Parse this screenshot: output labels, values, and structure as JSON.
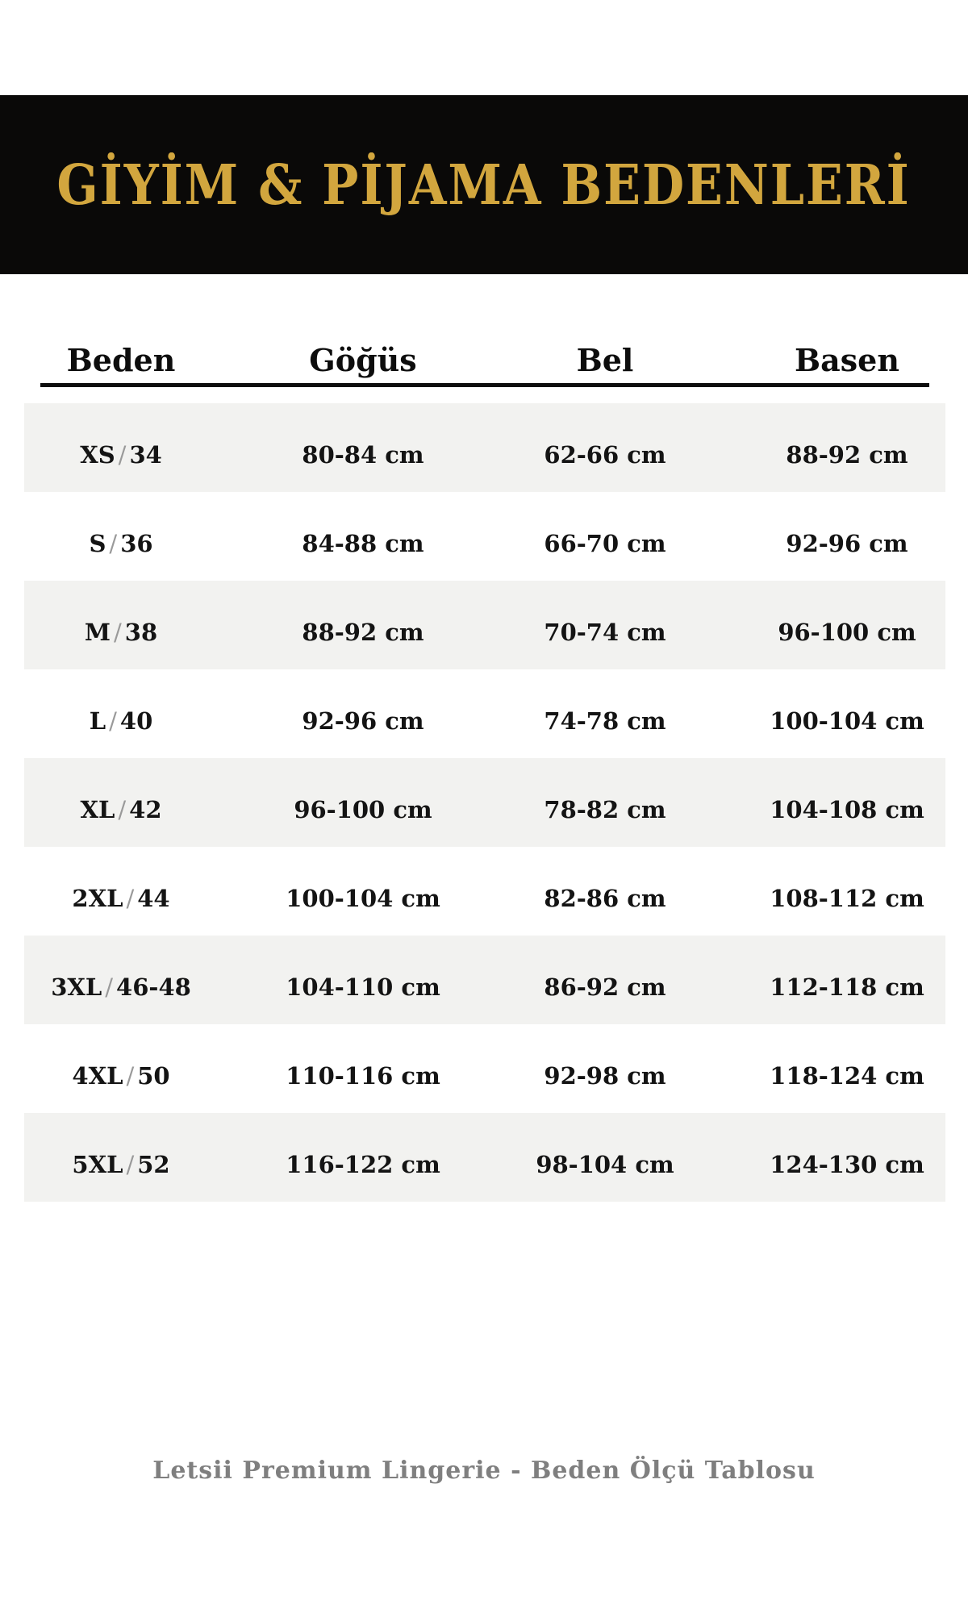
{
  "banner": {
    "title": "GİYİM & PİJAMA BEDENLERİ",
    "bg_color": "#0a0908",
    "title_color": "#d2a63e"
  },
  "chart_data": {
    "type": "table",
    "title": "GİYİM & PİJAMA BEDENLERİ",
    "columns": [
      "Beden",
      "Göğüs",
      "Bel",
      "Basen"
    ],
    "rows": [
      {
        "beden": "XS / 34",
        "gogus": "80-84 cm",
        "bel": "62-66 cm",
        "basen": "88-92 cm"
      },
      {
        "beden": "S / 36",
        "gogus": "84-88 cm",
        "bel": "66-70 cm",
        "basen": "92-96 cm"
      },
      {
        "beden": "M / 38",
        "gogus": "88-92 cm",
        "bel": "70-74 cm",
        "basen": "96-100 cm"
      },
      {
        "beden": "L / 40",
        "gogus": "92-96 cm",
        "bel": "74-78 cm",
        "basen": "100-104 cm"
      },
      {
        "beden": "XL / 42",
        "gogus": "96-100 cm",
        "bel": "78-82 cm",
        "basen": "104-108 cm"
      },
      {
        "beden": "2XL / 44",
        "gogus": "100-104 cm",
        "bel": "82-86 cm",
        "basen": "108-112 cm"
      },
      {
        "beden": "3XL / 46-48",
        "gogus": "104-110 cm",
        "bel": "86-92 cm",
        "basen": "112-118 cm"
      },
      {
        "beden": "4XL / 50",
        "gogus": "110-116 cm",
        "bel": "92-98 cm",
        "basen": "118-124 cm"
      },
      {
        "beden": "5XL / 52",
        "gogus": "116-122 cm",
        "bel": "98-104 cm",
        "basen": "124-130 cm"
      }
    ],
    "layout": {
      "stripe_color": "#f2f2f0",
      "striped_row_indexes": [
        0,
        2,
        4,
        6,
        8
      ],
      "grid": "off",
      "column_alignment": "center"
    }
  },
  "footer": {
    "text": "Letsii Premium Lingerie - Beden Ölçü Tablosu",
    "color": "#7f7f7f"
  }
}
